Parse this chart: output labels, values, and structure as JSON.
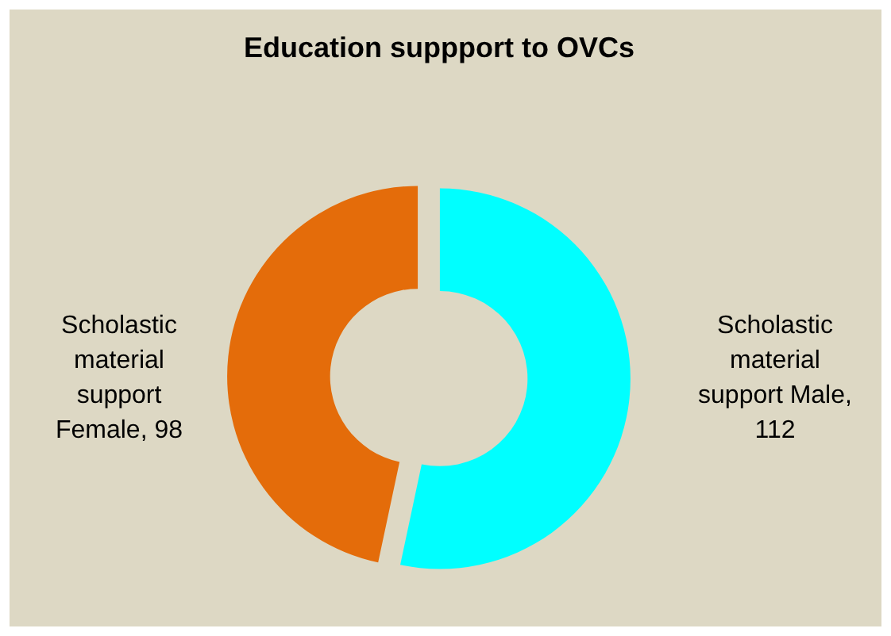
{
  "chart_data": {
    "type": "donut",
    "title": "Education suppport to OVCs",
    "categories": [
      "Scholastic material support Male",
      "Scholastic material support Female"
    ],
    "values": [
      112,
      98
    ],
    "value_labels": [
      ", 112",
      ", 98"
    ],
    "colors": [
      "#00ffff",
      "#e46c0a"
    ]
  }
}
